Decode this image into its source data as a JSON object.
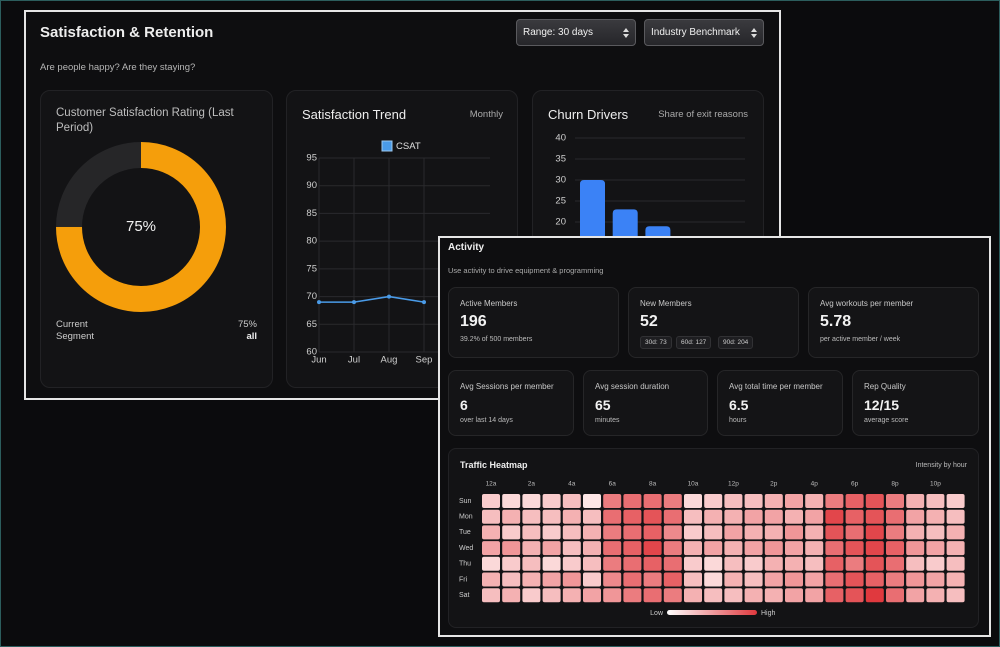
{
  "header": {
    "title": "Satisfaction & Retention",
    "subtitle": "Are people happy? Are they staying?",
    "controls": [
      "Range: 30 days",
      "Industry Benchmark"
    ]
  },
  "chart_data": [
    {
      "type": "donut",
      "title": "Customer Satisfaction Rating (Last Period)",
      "values": [
        75,
        25
      ],
      "colors": [
        "#f59e0b",
        "#262628"
      ],
      "center_label": "75%",
      "details": [
        {
          "label": "Current",
          "value": "75%"
        },
        {
          "label": "Segment",
          "value": "all"
        }
      ]
    },
    {
      "type": "line",
      "title": "Satisfaction Trend",
      "subtitle": "Monthly",
      "categories": [
        "Jun",
        "Jul",
        "Aug",
        "Sep"
      ],
      "series": [
        {
          "name": "CSAT",
          "color": "#4a9be8",
          "values": [
            69,
            69,
            70,
            69
          ]
        }
      ],
      "ylim": [
        60,
        95
      ],
      "yticks": [
        60,
        65,
        70,
        75,
        80,
        85,
        90,
        95
      ],
      "grid": true
    },
    {
      "type": "bar",
      "title": "Churn Drivers",
      "subtitle": "Share of exit reasons",
      "categories": [
        null,
        null,
        null
      ],
      "values": [
        30,
        23,
        19
      ],
      "color": "#3b82f6",
      "ylim": [
        0,
        40
      ],
      "yticks": [
        20,
        25,
        30,
        35,
        40
      ],
      "grid": true
    },
    {
      "type": "heatmap",
      "title": "Traffic Heatmap",
      "subtitle": "Intensity by hour",
      "x": [
        "12a",
        null,
        "2a",
        null,
        "4a",
        null,
        "6a",
        null,
        "8a",
        null,
        "10a",
        null,
        "12p",
        null,
        "2p",
        null,
        "4p",
        null,
        "6p",
        null,
        "8p",
        null,
        "10p",
        null
      ],
      "y": [
        "Sun",
        "Mon",
        "Tue",
        "Wed",
        "Thu",
        "Fri",
        "Sat"
      ],
      "values": [
        [
          25,
          20,
          20,
          25,
          30,
          15,
          55,
          60,
          60,
          55,
          20,
          25,
          30,
          30,
          35,
          40,
          35,
          55,
          65,
          70,
          55,
          35,
          30,
          25
        ],
        [
          30,
          35,
          30,
          30,
          35,
          30,
          60,
          65,
          70,
          60,
          30,
          35,
          35,
          40,
          40,
          35,
          40,
          75,
          65,
          70,
          60,
          40,
          35,
          30
        ],
        [
          35,
          25,
          30,
          25,
          30,
          35,
          55,
          60,
          65,
          50,
          25,
          30,
          40,
          35,
          35,
          45,
          35,
          70,
          60,
          75,
          55,
          35,
          30,
          35
        ],
        [
          40,
          45,
          35,
          40,
          30,
          35,
          60,
          65,
          75,
          55,
          35,
          40,
          35,
          40,
          45,
          40,
          35,
          60,
          70,
          75,
          65,
          45,
          40,
          35
        ],
        [
          20,
          25,
          30,
          20,
          25,
          30,
          55,
          60,
          65,
          60,
          25,
          20,
          30,
          25,
          35,
          35,
          30,
          65,
          55,
          70,
          60,
          30,
          25,
          30
        ],
        [
          35,
          30,
          35,
          40,
          45,
          25,
          50,
          60,
          55,
          65,
          30,
          20,
          35,
          30,
          40,
          45,
          40,
          60,
          70,
          65,
          55,
          45,
          40,
          35
        ],
        [
          30,
          35,
          25,
          30,
          35,
          40,
          45,
          55,
          60,
          55,
          35,
          30,
          30,
          35,
          35,
          40,
          40,
          65,
          70,
          80,
          60,
          40,
          35,
          30
        ]
      ],
      "low_color": "#fde6e6",
      "high_color": "#e0393e",
      "legend_labels": [
        "Low",
        "High"
      ]
    }
  ],
  "activity": {
    "title": "Activity",
    "subtitle": "Use activity to drive equipment & programming",
    "kpis": [
      {
        "label": "Active Members",
        "value": 196,
        "note": "39.2% of 500 members"
      },
      {
        "label": "New Members",
        "value": 52,
        "chips": [
          "30d: 73",
          "60d: 127",
          "90d: 204"
        ]
      },
      {
        "label": "Avg workouts per member",
        "value": 5.78,
        "note": "per active member / week"
      },
      {
        "label": "Avg Sessions per member",
        "value": 6,
        "note": "over last 14 days"
      },
      {
        "label": "Avg session duration",
        "value": 65,
        "note": "minutes"
      },
      {
        "label": "Avg total time per member",
        "value": 6.5,
        "note": "hours"
      },
      {
        "label": "Rep Quality",
        "value": "12/15",
        "note": "average score"
      }
    ]
  }
}
